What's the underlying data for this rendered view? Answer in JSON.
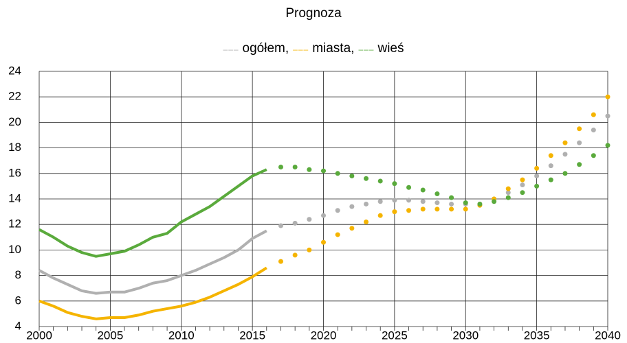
{
  "chart_data": {
    "type": "line",
    "title": "Prognoza",
    "x": [
      2000,
      2001,
      2002,
      2003,
      2004,
      2005,
      2006,
      2007,
      2008,
      2009,
      2010,
      2011,
      2012,
      2013,
      2014,
      2015,
      2016,
      2017,
      2018,
      2019,
      2020,
      2021,
      2022,
      2023,
      2024,
      2025,
      2026,
      2027,
      2028,
      2029,
      2030,
      2031,
      2032,
      2033,
      2034,
      2035,
      2036,
      2037,
      2038,
      2039,
      2040
    ],
    "series": [
      {
        "name": "ogółem,",
        "color": "#b0b0b0",
        "values": [
          8.4,
          7.8,
          7.3,
          6.8,
          6.6,
          6.7,
          6.7,
          7.0,
          7.4,
          7.6,
          8.0,
          8.4,
          8.9,
          9.4,
          10.0,
          10.9,
          11.5,
          null,
          null,
          null,
          null,
          null,
          null,
          null,
          null,
          null,
          null,
          null,
          null,
          null,
          null,
          null,
          null,
          null,
          null,
          null,
          null,
          null,
          null,
          null,
          null
        ],
        "forecast": [
          null,
          null,
          null,
          null,
          null,
          null,
          null,
          null,
          null,
          null,
          null,
          null,
          null,
          null,
          null,
          null,
          null,
          11.9,
          12.1,
          12.4,
          12.7,
          13.1,
          13.4,
          13.6,
          13.8,
          13.9,
          13.9,
          13.8,
          13.7,
          13.6,
          13.6,
          13.6,
          14.0,
          14.5,
          15.1,
          15.8,
          16.6,
          17.5,
          18.4,
          19.4,
          20.5
        ]
      },
      {
        "name": "miasta,",
        "color": "#f5b400",
        "values": [
          6.0,
          5.6,
          5.1,
          4.8,
          4.6,
          4.7,
          4.7,
          4.9,
          5.2,
          5.4,
          5.6,
          5.9,
          6.3,
          6.8,
          7.3,
          7.9,
          8.6,
          null,
          null,
          null,
          null,
          null,
          null,
          null,
          null,
          null,
          null,
          null,
          null,
          null,
          null,
          null,
          null,
          null,
          null,
          null,
          null,
          null,
          null,
          null,
          null
        ],
        "forecast": [
          null,
          null,
          null,
          null,
          null,
          null,
          null,
          null,
          null,
          null,
          null,
          null,
          null,
          null,
          null,
          null,
          null,
          9.1,
          9.6,
          10.0,
          10.6,
          11.2,
          11.7,
          12.2,
          12.7,
          13.0,
          13.1,
          13.2,
          13.2,
          13.2,
          13.2,
          13.5,
          14.0,
          14.8,
          15.5,
          16.4,
          17.4,
          18.4,
          19.5,
          20.6,
          22.0
        ]
      },
      {
        "name": "wieś",
        "color": "#5aaa3c",
        "values": [
          11.6,
          11.0,
          10.3,
          9.8,
          9.5,
          9.7,
          9.9,
          10.4,
          11.0,
          11.3,
          12.2,
          12.8,
          13.4,
          14.2,
          15.0,
          15.8,
          16.3,
          null,
          null,
          null,
          null,
          null,
          null,
          null,
          null,
          null,
          null,
          null,
          null,
          null,
          null,
          null,
          null,
          null,
          null,
          null,
          null,
          null,
          null,
          null,
          null
        ],
        "forecast": [
          null,
          null,
          null,
          null,
          null,
          null,
          null,
          null,
          null,
          null,
          null,
          null,
          null,
          null,
          null,
          null,
          null,
          16.5,
          16.5,
          16.3,
          16.2,
          16.0,
          15.8,
          15.6,
          15.4,
          15.2,
          14.9,
          14.7,
          14.4,
          14.1,
          13.7,
          13.6,
          13.8,
          14.1,
          14.5,
          15.0,
          15.5,
          16.0,
          16.7,
          17.4,
          18.2
        ]
      }
    ],
    "xlim": [
      2000,
      2040
    ],
    "xticks": [
      2000,
      2005,
      2010,
      2015,
      2020,
      2025,
      2030,
      2035,
      2040
    ],
    "ylim": [
      4,
      24
    ],
    "yticks": [
      4,
      6,
      8,
      10,
      12,
      14,
      16,
      18,
      20,
      22,
      24
    ],
    "grid": true
  }
}
